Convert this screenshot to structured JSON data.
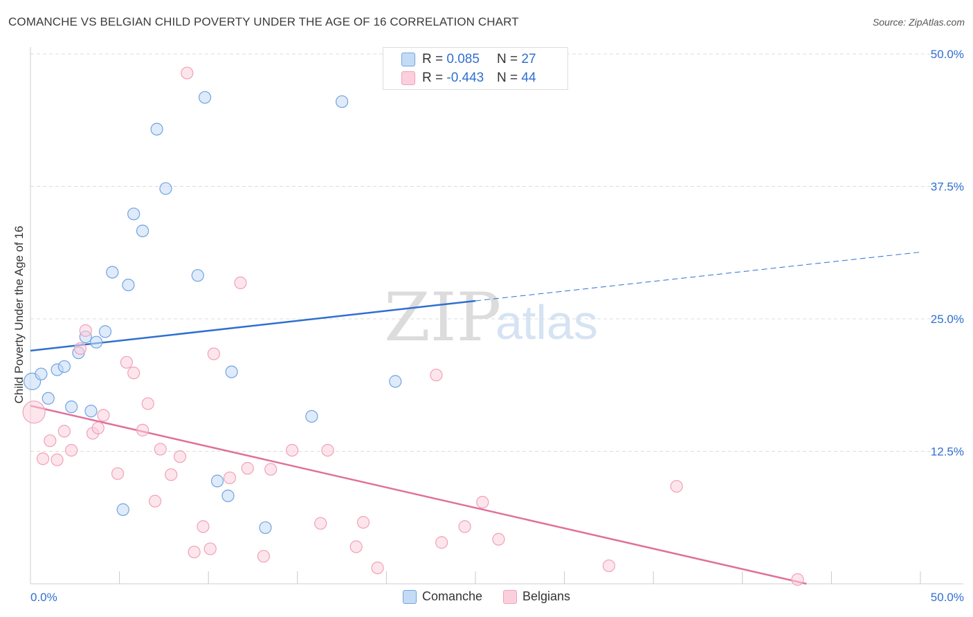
{
  "title": "COMANCHE VS BELGIAN CHILD POVERTY UNDER THE AGE OF 16 CORRELATION CHART",
  "source": "Source: ZipAtlas.com",
  "watermark": {
    "zip": "ZIP",
    "atlas": "atlas"
  },
  "legend": {
    "comanche": {
      "r_label": "R = ",
      "r_value": "0.085",
      "n_label": "N = ",
      "n_value": "27"
    },
    "belgians": {
      "r_label": "R = ",
      "r_value": "-0.443",
      "n_label": "N = ",
      "n_value": "44"
    }
  },
  "chart_data": {
    "type": "scatter",
    "title": "COMANCHE VS BELGIAN CHILD POVERTY UNDER THE AGE OF 16 CORRELATION CHART",
    "xlabel": "",
    "ylabel": "Child Poverty Under the Age of 16",
    "xlim": [
      0,
      50
    ],
    "ylim": [
      0,
      50
    ],
    "x_tick_labels": [
      "0.0%",
      "50.0%"
    ],
    "y_tick_labels": [
      "12.5%",
      "25.0%",
      "37.5%",
      "50.0%"
    ],
    "y_ticks": [
      12.5,
      25.0,
      37.5,
      50.0
    ],
    "grid": true,
    "legend_position": "top-center",
    "colors": {
      "comanche": "#6fa3e0",
      "belgians": "#f0a0b8",
      "comanche_line": "#2f6fd1",
      "belgians_line": "#e0709a"
    },
    "series": [
      {
        "name": "Comanche",
        "points": [
          [
            0.1,
            19.1
          ],
          [
            0.6,
            19.8
          ],
          [
            1.0,
            17.5
          ],
          [
            1.5,
            20.2
          ],
          [
            1.9,
            20.5
          ],
          [
            2.3,
            16.7
          ],
          [
            2.7,
            21.8
          ],
          [
            3.1,
            23.3
          ],
          [
            3.4,
            16.3
          ],
          [
            3.7,
            22.8
          ],
          [
            4.2,
            23.8
          ],
          [
            4.6,
            29.4
          ],
          [
            5.2,
            7.0
          ],
          [
            5.5,
            28.2
          ],
          [
            5.8,
            34.9
          ],
          [
            6.3,
            33.3
          ],
          [
            7.1,
            42.9
          ],
          [
            7.6,
            37.3
          ],
          [
            9.4,
            29.1
          ],
          [
            9.8,
            45.9
          ],
          [
            10.5,
            9.7
          ],
          [
            11.1,
            8.3
          ],
          [
            11.3,
            20.0
          ],
          [
            13.2,
            5.3
          ],
          [
            15.8,
            15.8
          ],
          [
            17.5,
            45.5
          ],
          [
            20.5,
            19.1
          ]
        ],
        "trend": {
          "x": [
            0,
            25,
            50
          ],
          "y": [
            22.0,
            26.7,
            31.3
          ],
          "solid_until": 25
        }
      },
      {
        "name": "Belgians",
        "points": [
          [
            0.2,
            16.2
          ],
          [
            0.7,
            11.8
          ],
          [
            1.1,
            13.5
          ],
          [
            1.5,
            11.7
          ],
          [
            1.9,
            14.4
          ],
          [
            2.3,
            12.6
          ],
          [
            2.8,
            22.2
          ],
          [
            3.1,
            23.9
          ],
          [
            3.5,
            14.2
          ],
          [
            3.8,
            14.7
          ],
          [
            4.1,
            15.9
          ],
          [
            4.9,
            10.4
          ],
          [
            5.4,
            20.9
          ],
          [
            5.8,
            19.9
          ],
          [
            6.3,
            14.5
          ],
          [
            6.6,
            17.0
          ],
          [
            7.0,
            7.8
          ],
          [
            7.3,
            12.7
          ],
          [
            7.9,
            10.3
          ],
          [
            8.4,
            12.0
          ],
          [
            8.8,
            48.2
          ],
          [
            9.2,
            3.0
          ],
          [
            9.7,
            5.4
          ],
          [
            10.1,
            3.3
          ],
          [
            10.3,
            21.7
          ],
          [
            11.2,
            10.0
          ],
          [
            11.8,
            28.4
          ],
          [
            12.2,
            10.9
          ],
          [
            13.1,
            2.6
          ],
          [
            13.5,
            10.8
          ],
          [
            14.7,
            12.6
          ],
          [
            16.3,
            5.7
          ],
          [
            16.7,
            12.6
          ],
          [
            18.3,
            3.5
          ],
          [
            18.7,
            5.8
          ],
          [
            19.5,
            1.5
          ],
          [
            22.8,
            19.7
          ],
          [
            23.1,
            3.9
          ],
          [
            24.4,
            5.4
          ],
          [
            25.4,
            7.7
          ],
          [
            26.3,
            4.2
          ],
          [
            32.5,
            1.7
          ],
          [
            36.3,
            9.2
          ],
          [
            43.1,
            0.4
          ]
        ],
        "trend": {
          "x": [
            0,
            43.6
          ],
          "y": [
            16.8,
            0.0
          ]
        }
      }
    ]
  },
  "bottom_legend": {
    "comanche": "Comanche",
    "belgians": "Belgians"
  }
}
